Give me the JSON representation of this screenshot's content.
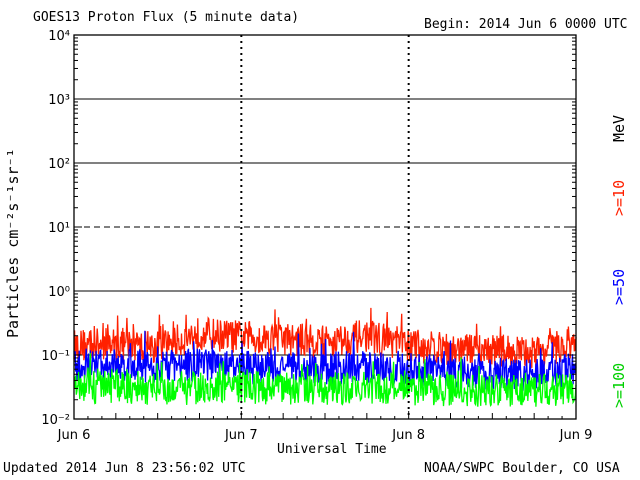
{
  "header": {
    "title": "GOES13 Proton Flux (5 minute data)",
    "begin": "Begin: 2014 Jun 6 0000 UTC"
  },
  "footer": {
    "updated": "Updated 2014 Jun  8 23:56:02 UTC",
    "credit": "NOAA/SWPC Boulder, CO USA"
  },
  "chart_data": {
    "type": "line",
    "title": "GOES13 Proton Flux (5 minute data)",
    "xlabel": "Universal Time",
    "ylabel": "Particles cm⁻²s⁻¹sr⁻¹",
    "y_scale": "log",
    "ylim": [
      0.01,
      10000
    ],
    "y_tick_labels": [
      "10⁻²",
      "10⁻¹",
      "10⁰",
      "10¹",
      "10²",
      "10³",
      "10⁴"
    ],
    "x_tick_labels": [
      "Jun 6",
      "Jun 7",
      "Jun 8",
      "Jun 9"
    ],
    "grid": true,
    "dashed_gridline_value": 10,
    "side_label_unit": "MeV",
    "series": [
      {
        "name": ">=10",
        "color": "#ff2000",
        "x": [
          "Jun 6 00:00",
          "Jun 6 06:00",
          "Jun 6 12:00",
          "Jun 6 18:00",
          "Jun 7 00:00",
          "Jun 7 06:00",
          "Jun 7 12:00",
          "Jun 7 18:00",
          "Jun 8 00:00",
          "Jun 8 06:00",
          "Jun 8 12:00",
          "Jun 8 18:00",
          "Jun 9 00:00"
        ],
        "values": [
          0.14,
          0.15,
          0.13,
          0.22,
          0.19,
          0.18,
          0.16,
          0.2,
          0.14,
          0.12,
          0.12,
          0.11,
          0.15
        ]
      },
      {
        "name": ">=50",
        "color": "#0000ff",
        "x": [
          "Jun 6 00:00",
          "Jun 6 06:00",
          "Jun 6 12:00",
          "Jun 6 18:00",
          "Jun 7 00:00",
          "Jun 7 06:00",
          "Jun 7 12:00",
          "Jun 7 18:00",
          "Jun 8 00:00",
          "Jun 8 06:00",
          "Jun 8 12:00",
          "Jun 8 18:00",
          "Jun 9 00:00"
        ],
        "values": [
          0.065,
          0.07,
          0.065,
          0.07,
          0.065,
          0.06,
          0.062,
          0.065,
          0.06,
          0.055,
          0.05,
          0.05,
          0.06
        ]
      },
      {
        "name": ">=100",
        "color": "#00ff00",
        "x": [
          "Jun 6 00:00",
          "Jun 6 06:00",
          "Jun 6 12:00",
          "Jun 6 18:00",
          "Jun 7 00:00",
          "Jun 7 06:00",
          "Jun 7 12:00",
          "Jun 7 18:00",
          "Jun 8 00:00",
          "Jun 8 06:00",
          "Jun 8 12:00",
          "Jun 8 18:00",
          "Jun 9 00:00"
        ],
        "values": [
          0.03,
          0.032,
          0.03,
          0.03,
          0.032,
          0.03,
          0.03,
          0.03,
          0.03,
          0.028,
          0.028,
          0.028,
          0.03
        ]
      }
    ]
  }
}
